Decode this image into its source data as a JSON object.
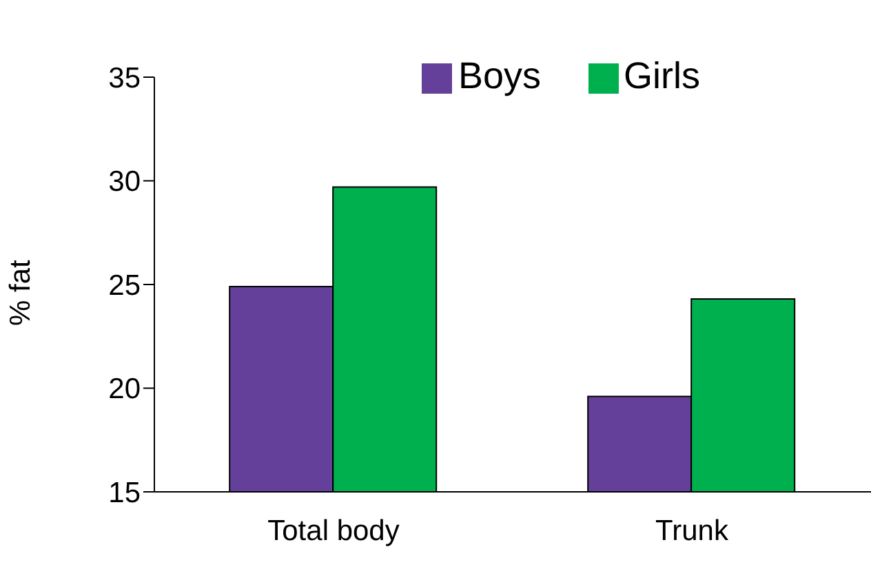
{
  "chart_data": {
    "type": "bar",
    "categories": [
      "Total body",
      "Trunk"
    ],
    "ylabel": "% fat",
    "series": [
      {
        "name": "Boys",
        "color": "#65409a",
        "values": [
          24.9,
          19.6
        ]
      },
      {
        "name": "Girls",
        "color": "#00b04f",
        "values": [
          29.7,
          24.3
        ]
      }
    ],
    "ylim": [
      15,
      35
    ],
    "yticks": [
      15,
      20,
      25,
      30,
      35
    ],
    "grid": false,
    "legend": "top right"
  }
}
